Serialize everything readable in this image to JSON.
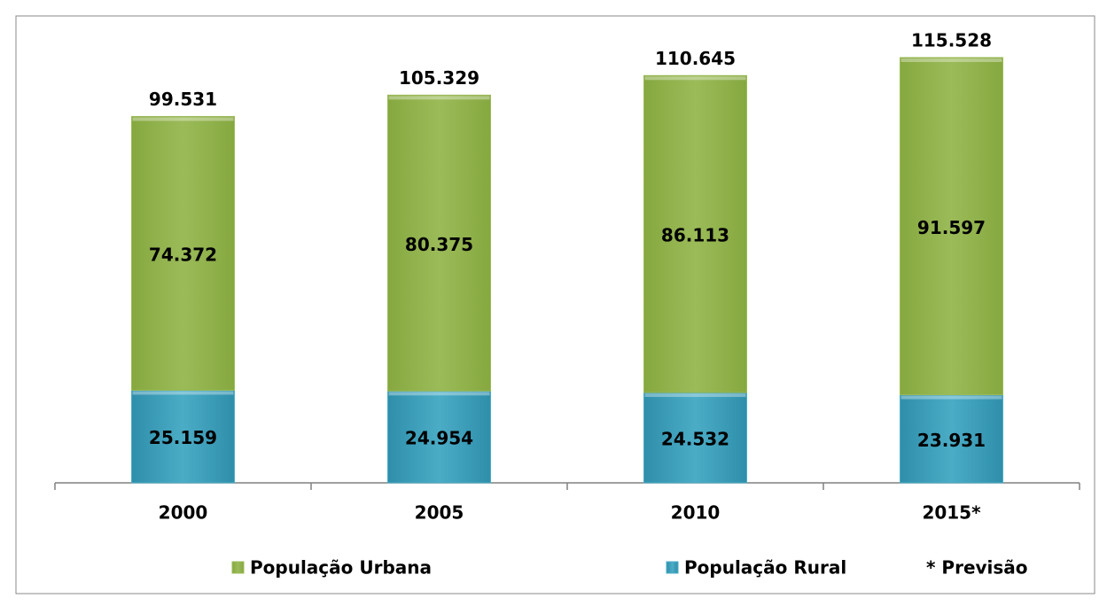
{
  "chart_data": {
    "type": "stacked_bar",
    "categories": [
      "2000",
      "2005",
      "2010",
      "2015*"
    ],
    "series": [
      {
        "name": "População Rural",
        "color": "#4bacc6",
        "values": [
          25.159,
          24.954,
          24.532,
          23.931
        ]
      },
      {
        "name": "População Urbana",
        "color": "#9bbb59",
        "values": [
          74.372,
          80.375,
          86.113,
          91.597
        ]
      }
    ],
    "totals": [
      99.531,
      105.329,
      110.645,
      115.528
    ],
    "annotation": "* Previsão"
  }
}
